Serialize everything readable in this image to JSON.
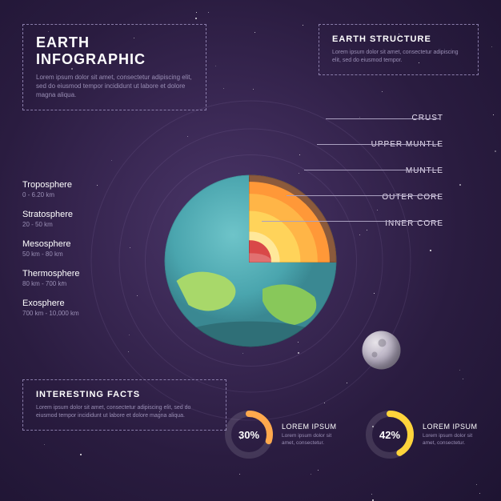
{
  "title": {
    "heading": "EARTH INFOGRAPHIC",
    "body": "Lorem ipsum dolor sit amet, consectetur adipiscing elit, sed do eiusmod tempor incididunt ut labore et dolore magna aliqua."
  },
  "structure": {
    "heading": "EARTH STRUCTURE",
    "body": "Lorem ipsum dolor sit amet, consectetur adipiscing elit, sed do eiusmod tempor."
  },
  "atmosphere": [
    {
      "label": "Troposphere",
      "range": "0 - 6.20 km"
    },
    {
      "label": "Stratosphere",
      "range": "20 - 50 km"
    },
    {
      "label": "Mesosphere",
      "range": "50 km - 80 km"
    },
    {
      "label": "Thermosphere",
      "range": "80 km - 700 km"
    },
    {
      "label": "Exosphere",
      "range": "700 km - 10,000 km"
    }
  ],
  "layers": [
    "CRUST",
    "UPPER MUNTLE",
    "MUNTLE",
    "OUTER CORE",
    "INNER CORE"
  ],
  "facts": {
    "heading": "INTERESTING FACTS",
    "body": "Lorem ipsum dolor sit amet, consectetur adipiscing elit, sed do eiusmod tempor incididunt ut labore et dolore magna aliqua."
  },
  "charts": [
    {
      "pct": 30,
      "pct_label": "30%",
      "title": "LOREM IPSUM",
      "desc": "Lorem ipsum dolor sit amet, consectetur.",
      "color": "#ffa94d"
    },
    {
      "pct": 42,
      "pct_label": "42%",
      "title": "LOREM IPSUM",
      "desc": "Lorem ipsum dolor sit amet, consectetur.",
      "color": "#ffd43b"
    }
  ],
  "earth": {
    "rings": [
      400,
      330,
      265
    ],
    "diameter": 215,
    "colors": {
      "ocean_light": "#6ec4c9",
      "ocean": "#4aa5ae",
      "ocean_dark": "#3a8892",
      "land1": "#a8d86a",
      "land2": "#88c85a",
      "crust": "#8b5a3c",
      "upper_mantle": "#ff9838",
      "mantle": "#ffb547",
      "outer_core": "#ffd35a",
      "inner_core_glow": "#ffe89a",
      "inner_core": "#d94848"
    }
  },
  "style": {
    "bg_gradient": [
      "#4a3668",
      "#1e1432"
    ],
    "text_primary": "#ffffff",
    "text_muted": "#9a8fb5",
    "border_dash": "#8a7daa",
    "ring_color": "rgba(180,160,210,.12)",
    "donut_track": "rgba(255,255,255,.12)",
    "moon_grad": [
      "#e8e4ea",
      "#a8a0b4",
      "#888098"
    ]
  },
  "star_count": 60
}
